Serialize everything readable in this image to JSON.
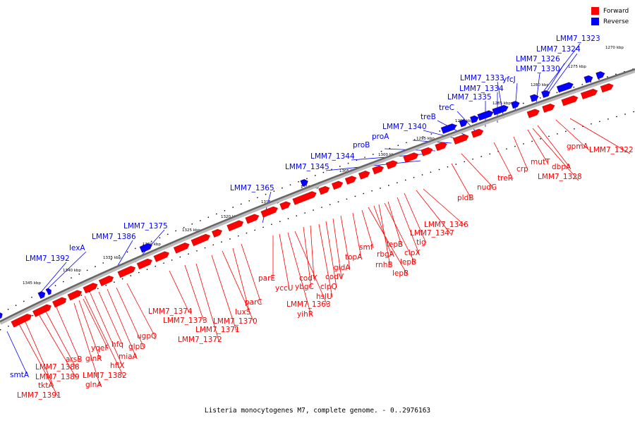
{
  "caption": "Listeria monocytogenes M7, complete genome. - 0..2976163",
  "legend": [
    {
      "label": "Forward",
      "color": "#ff0000"
    },
    {
      "label": "Reverse",
      "color": "#0000ff"
    }
  ],
  "colors": {
    "forward": "#ff0000",
    "reverse": "#0000ff",
    "backbone": "#808080"
  },
  "ticks": [
    "1270 kbp",
    "1275 kbp",
    "1280 kbp",
    "1285 kbp",
    "1290 kbp",
    "1295 kbp",
    "1300 kbp",
    "1305 kbp",
    "1310 kbp",
    "1315 kbp",
    "1320 kbp",
    "1325 kbp",
    "1330 kbp",
    "1335 kbp",
    "1340 kbp",
    "1345 kbp"
  ],
  "reverse_labels": [
    "LMM7_1323",
    "LMM7_1324",
    "LMM7_1326",
    "LMM7_1330",
    "yfcJ",
    "LMM7_1333",
    "LMM7_1334",
    "LMM7_1335",
    "treC",
    "treB",
    "LMM7_1340",
    "proA",
    "proB",
    "LMM7_1344",
    "LMM7_1345",
    "LMM7_1365",
    "LMM7_1375",
    "LMM7_1386",
    "lexA",
    "LMM7_1392",
    "smtA"
  ],
  "forward_labels": [
    "LMM7_1322",
    "gpmA",
    "dbpA",
    "LMM7_1328",
    "mutT",
    "crp",
    "treR",
    "nudG",
    "pldB",
    "LMM7_1346",
    "LMM7_1347",
    "tig",
    "clpX",
    "lepB",
    "lepB",
    "rnhB",
    "rbgA",
    "lepB",
    "smf",
    "topA",
    "gidA",
    "codV",
    "clpQ",
    "hslU",
    "codY",
    "ybgC",
    "LMM7_1363",
    "yihR",
    "yccU",
    "parE",
    "parC",
    "luxS",
    "LMM7_1370",
    "LMM7_1371",
    "LMM7_1372",
    "LMM7_1373",
    "LMM7_1374",
    "ugpQ",
    "glpD",
    "miaA",
    "hfq",
    "hflX",
    "LMM7_1382",
    "yqeF",
    "glnR",
    "glnA",
    "arsB",
    "LMM7_1388",
    "LMM7_1389",
    "tktA",
    "LMM7_1391"
  ]
}
